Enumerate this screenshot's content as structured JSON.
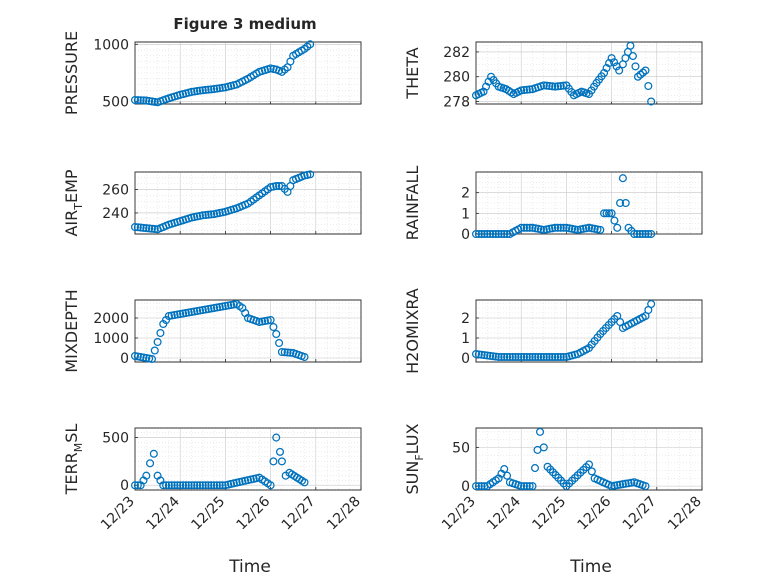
{
  "figure": {
    "title": "Figure 3 medium"
  },
  "chart_data": [
    {
      "type": "scatter",
      "ylabel": "PRESSURE",
      "xlabel": "",
      "xlim": [
        "12/23",
        "12/28"
      ],
      "ylim": [
        480,
        1020
      ],
      "yticks": [
        500,
        1000
      ],
      "xtick_labels": [],
      "x": [
        "12/23",
        "12/23 06:00",
        "12/23 12:00",
        "12/23 18:00",
        "12/24",
        "12/24 06:00",
        "12/24 12:00",
        "12/24 18:00",
        "12/25",
        "12/25 06:00",
        "12/25 12:00",
        "12/25 18:00",
        "12/26",
        "12/26 03:00",
        "12/26 06:00",
        "12/26 09:00",
        "12/26 12:00",
        "12/26 18:00",
        "12/26 21:00"
      ],
      "y": [
        515,
        510,
        495,
        530,
        560,
        585,
        600,
        610,
        625,
        650,
        700,
        760,
        790,
        780,
        760,
        800,
        900,
        960,
        1000
      ]
    },
    {
      "type": "scatter",
      "ylabel": "THETA",
      "xlabel": "",
      "xlim": [
        "12/23",
        "12/28"
      ],
      "ylim": [
        277.8,
        282.8
      ],
      "yticks": [
        278,
        280,
        282
      ],
      "xtick_labels": [],
      "x": [
        "12/23",
        "12/23 04:00",
        "12/23 08:00",
        "12/23 12:00",
        "12/23 16:00",
        "12/23 20:00",
        "12/24",
        "12/24 06:00",
        "12/24 12:00",
        "12/24 18:00",
        "12/25",
        "12/25 04:00",
        "12/25 08:00",
        "12/25 12:00",
        "12/25 16:00",
        "12/25 20:00",
        "12/26",
        "12/26 04:00",
        "12/26 06:00",
        "12/26 10:00",
        "12/26 14:00",
        "12/26 18:00",
        "12/26 21:00"
      ],
      "y": [
        278.5,
        278.8,
        280.0,
        279.2,
        279.0,
        278.6,
        278.9,
        279.0,
        279.3,
        279.2,
        279.3,
        278.5,
        278.8,
        278.6,
        279.5,
        280.3,
        281.5,
        280.5,
        281.0,
        282.5,
        280.0,
        280.5,
        278.0
      ]
    },
    {
      "type": "scatter",
      "ylabel": "AIR_TEMP",
      "xlabel": "",
      "xlim": [
        "12/23",
        "12/28"
      ],
      "ylim": [
        222,
        275
      ],
      "yticks": [
        240,
        260
      ],
      "xtick_labels": [],
      "x": [
        "12/23",
        "12/23 06:00",
        "12/23 12:00",
        "12/23 18:00",
        "12/24",
        "12/24 06:00",
        "12/24 12:00",
        "12/24 18:00",
        "12/25",
        "12/25 06:00",
        "12/25 12:00",
        "12/25 18:00",
        "12/26",
        "12/26 03:00",
        "12/26 06:00",
        "12/26 09:00",
        "12/26 12:00",
        "12/26 18:00",
        "12/26 21:00"
      ],
      "y": [
        228,
        227,
        226,
        230,
        233,
        236,
        238,
        239,
        241,
        244,
        248,
        255,
        262,
        263,
        263,
        258,
        268,
        272,
        273
      ]
    },
    {
      "type": "scatter",
      "ylabel": "RAINFALL",
      "xlabel": "",
      "xlim": [
        "12/23",
        "12/28"
      ],
      "ylim": [
        0,
        3.0
      ],
      "yticks": [
        0,
        1,
        2
      ],
      "xtick_labels": [],
      "x": [
        "12/23",
        "12/23 06:00",
        "12/23 12:00",
        "12/23 18:00",
        "12/24",
        "12/24 06:00",
        "12/24 12:00",
        "12/24 18:00",
        "12/25",
        "12/25 06:00",
        "12/25 12:00",
        "12/25 18:00",
        "12/25 20:00",
        "12/26",
        "12/26 03:00",
        "12/26 06:00",
        "12/26 09:00",
        "12/26 12:00",
        "12/26 18:00",
        "12/26 21:00"
      ],
      "y": [
        0,
        0,
        0,
        0,
        0.3,
        0.3,
        0.2,
        0.3,
        0.3,
        0.2,
        0.3,
        0.2,
        1.0,
        1.0,
        0.3,
        2.7,
        0.3,
        0,
        0,
        0
      ]
    },
    {
      "type": "scatter",
      "ylabel": "MIXDEPTH",
      "xlabel": "",
      "xlim": [
        "12/23",
        "12/28"
      ],
      "ylim": [
        -200,
        2900
      ],
      "yticks": [
        0,
        1000,
        2000
      ],
      "xtick_labels": [],
      "x": [
        "12/23",
        "12/23 03:00",
        "12/23 06:00",
        "12/23 09:00",
        "12/23 12:00",
        "12/23 15:00",
        "12/23 18:00",
        "12/24",
        "12/24 06:00",
        "12/24 12:00",
        "12/24 18:00",
        "12/25",
        "12/25 06:00",
        "12/25 09:00",
        "12/25 12:00",
        "12/25 18:00",
        "12/26",
        "12/26 03:00",
        "12/26 06:00",
        "12/26 12:00",
        "12/26 18:00"
      ],
      "y": [
        100,
        50,
        0,
        -50,
        800,
        1700,
        2100,
        2200,
        2300,
        2400,
        2500,
        2600,
        2700,
        2500,
        2000,
        1800,
        1900,
        1200,
        300,
        250,
        50
      ]
    },
    {
      "type": "scatter",
      "ylabel": "H2OMIXRA",
      "xlabel": "",
      "xlim": [
        "12/23",
        "12/28"
      ],
      "ylim": [
        -0.2,
        2.9
      ],
      "yticks": [
        0,
        1,
        2
      ],
      "xtick_labels": [],
      "x": [
        "12/23",
        "12/23 12:00",
        "12/24",
        "12/24 12:00",
        "12/25",
        "12/25 06:00",
        "12/25 12:00",
        "12/25 18:00",
        "12/26",
        "12/26 03:00",
        "12/26 06:00",
        "12/26 12:00",
        "12/26 18:00",
        "12/26 21:00"
      ],
      "y": [
        0.2,
        0.05,
        0.05,
        0.05,
        0.05,
        0.2,
        0.5,
        1.2,
        1.8,
        2.1,
        1.5,
        1.8,
        2.1,
        2.7
      ]
    },
    {
      "type": "scatter",
      "ylabel": "TERR_MSL",
      "xlabel": "Time",
      "xlim": [
        "12/23",
        "12/28"
      ],
      "ylim": [
        -50,
        600
      ],
      "yticks": [
        0,
        500
      ],
      "xtick_labels": [
        "12/23",
        "12/24",
        "12/25",
        "12/26",
        "12/27",
        "12/28"
      ],
      "x": [
        "12/23",
        "12/23 03:00",
        "12/23 06:00",
        "12/23 08:00",
        "12/23 10:00",
        "12/23 12:00",
        "12/23 15:00",
        "12/24",
        "12/24 12:00",
        "12/25",
        "12/25 18:00",
        "12/26",
        "12/26 03:00",
        "12/26 05:00",
        "12/26 06:00",
        "12/26 08:00",
        "12/26 10:00",
        "12/26 14:00",
        "12/26 18:00"
      ],
      "y": [
        0,
        0,
        100,
        230,
        330,
        100,
        0,
        0,
        0,
        0,
        80,
        0,
        500,
        350,
        250,
        100,
        130,
        80,
        30
      ]
    },
    {
      "type": "scatter",
      "ylabel": "SUN_FLUX",
      "xlabel": "Time",
      "xlim": [
        "12/23",
        "12/28"
      ],
      "ylim": [
        -5,
        75
      ],
      "yticks": [
        0,
        50
      ],
      "xtick_labels": [
        "12/23",
        "12/24",
        "12/25",
        "12/26",
        "12/27",
        "12/28"
      ],
      "x": [
        "12/23",
        "12/23 06:00",
        "12/23 12:00",
        "12/23 15:00",
        "12/23 18:00",
        "12/24",
        "12/24 06:00",
        "12/24 10:00",
        "12/24 12:00",
        "12/24 14:00",
        "12/25",
        "12/25 12:00",
        "12/25 15:00",
        "12/26",
        "12/26 12:00",
        "12/26 18:00"
      ],
      "y": [
        0,
        0,
        10,
        22,
        5,
        0,
        0,
        70,
        50,
        25,
        0,
        28,
        10,
        0,
        5,
        0
      ]
    }
  ],
  "colors": {
    "marker": "#0072bd",
    "text": "#262626"
  }
}
